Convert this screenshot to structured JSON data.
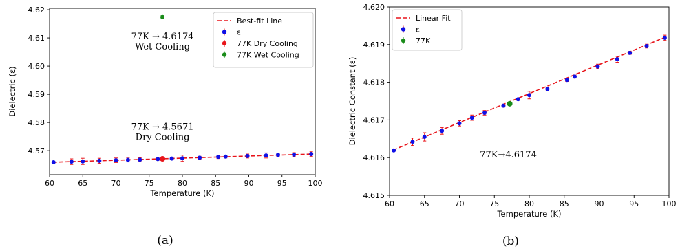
{
  "chart_data": [
    {
      "type": "scatter",
      "caption": "(a)",
      "xlabel": "Temperature (K)",
      "ylabel": "Dielectric (ε)",
      "xlim": [
        60,
        100
      ],
      "ylim": [
        4.5615,
        4.6205
      ],
      "xticks": [
        60,
        65,
        70,
        75,
        80,
        85,
        90,
        95,
        100
      ],
      "yticks": [
        4.57,
        4.58,
        4.59,
        4.6,
        4.61,
        4.62
      ],
      "ytick_labels": [
        "4.57",
        "4.58",
        "4.59",
        "4.60",
        "4.61",
        "4.62"
      ],
      "grid": false,
      "legend_position": "top-right",
      "fit_line": {
        "name": "Best-fit Line",
        "color": "#e8141a",
        "x": [
          60.5,
          99.5
        ],
        "y": [
          4.5659,
          4.5688
        ]
      },
      "series": [
        {
          "name": "ε",
          "color": "#1010e6",
          "x": [
            60.6,
            63.3,
            65.0,
            67.5,
            70.0,
            71.8,
            73.6,
            76.3,
            78.4,
            80.0,
            82.6,
            85.4,
            86.5,
            89.8,
            92.6,
            94.4,
            96.8,
            99.4
          ],
          "y": [
            4.5659,
            4.5661,
            4.5662,
            4.5664,
            4.5666,
            4.5667,
            4.5668,
            4.567,
            4.5672,
            4.5673,
            4.5675,
            4.5678,
            4.5679,
            4.5681,
            4.5683,
            4.5685,
            4.5686,
            4.5688
          ],
          "err": [
            0.0002,
            0.001,
            0.0011,
            0.0009,
            0.0008,
            0.0007,
            0.0007,
            0.0004,
            0.0004,
            0.0011,
            0.0005,
            0.0006,
            0.0005,
            0.0007,
            0.0009,
            0.0006,
            0.0007,
            0.0008
          ]
        },
        {
          "name": "77K Dry Cooling",
          "color": "#e8141a",
          "x": [
            77.0
          ],
          "y": [
            4.5671
          ],
          "err": [
            0.0004
          ]
        },
        {
          "name": "77K Wet Cooling",
          "color": "#1a8c1a",
          "x": [
            77.0
          ],
          "y": [
            4.6174
          ],
          "err": [
            0.0005
          ]
        }
      ],
      "annotations": [
        {
          "lines": [
            "77K → 4.6174",
            "Wet Cooling"
          ],
          "x": 77.0,
          "y": 4.6095
        },
        {
          "lines": [
            "77K → 4.5671",
            "Dry Cooling"
          ],
          "x": 77.0,
          "y": 4.5775
        }
      ]
    },
    {
      "type": "scatter",
      "caption": "(b)",
      "xlabel": "Temperature (K)",
      "ylabel": "Dielectric Constant (ε)",
      "xlim": [
        60,
        100
      ],
      "ylim": [
        4.615,
        4.62
      ],
      "xticks": [
        60,
        65,
        70,
        75,
        80,
        85,
        90,
        95,
        100
      ],
      "yticks": [
        4.615,
        4.616,
        4.617,
        4.618,
        4.619,
        4.62
      ],
      "ytick_labels": [
        "4.615",
        "4.616",
        "4.617",
        "4.618",
        "4.619",
        "4.620"
      ],
      "grid": false,
      "legend_position": "top-left",
      "fit_line": {
        "name": "Linear Fit",
        "color": "#e8141a",
        "x": [
          60.5,
          99.5
        ],
        "y": [
          4.6162,
          4.6192
        ]
      },
      "series": [
        {
          "name": "ε",
          "color": "#1010e6",
          "x": [
            60.6,
            63.3,
            65.0,
            67.5,
            70.0,
            71.8,
            73.6,
            76.3,
            78.4,
            80.0,
            82.6,
            85.4,
            86.5,
            89.8,
            92.6,
            94.4,
            96.8,
            99.4
          ],
          "y": [
            4.61619,
            4.61642,
            4.61655,
            4.61671,
            4.61691,
            4.61706,
            4.61719,
            4.61738,
            4.61755,
            4.61766,
            4.61782,
            4.61806,
            4.61815,
            4.61842,
            4.61861,
            4.61878,
            4.61896,
            4.61918
          ],
          "err": [
            2e-05,
            0.0001,
            0.00011,
            9e-05,
            7e-05,
            7e-05,
            6e-05,
            4e-05,
            3e-05,
            0.0001,
            4e-05,
            4e-05,
            4e-05,
            6e-05,
            8e-05,
            4e-05,
            5e-05,
            7e-05
          ]
        },
        {
          "name": "77K",
          "color": "#1a8c1a",
          "x": [
            77.2
          ],
          "y": [
            4.61743
          ],
          "err": [
            4e-05
          ]
        }
      ],
      "annotations": [
        {
          "lines": [
            "77K→4.6174"
          ],
          "x": 77.0,
          "y": 4.616
        }
      ]
    }
  ]
}
